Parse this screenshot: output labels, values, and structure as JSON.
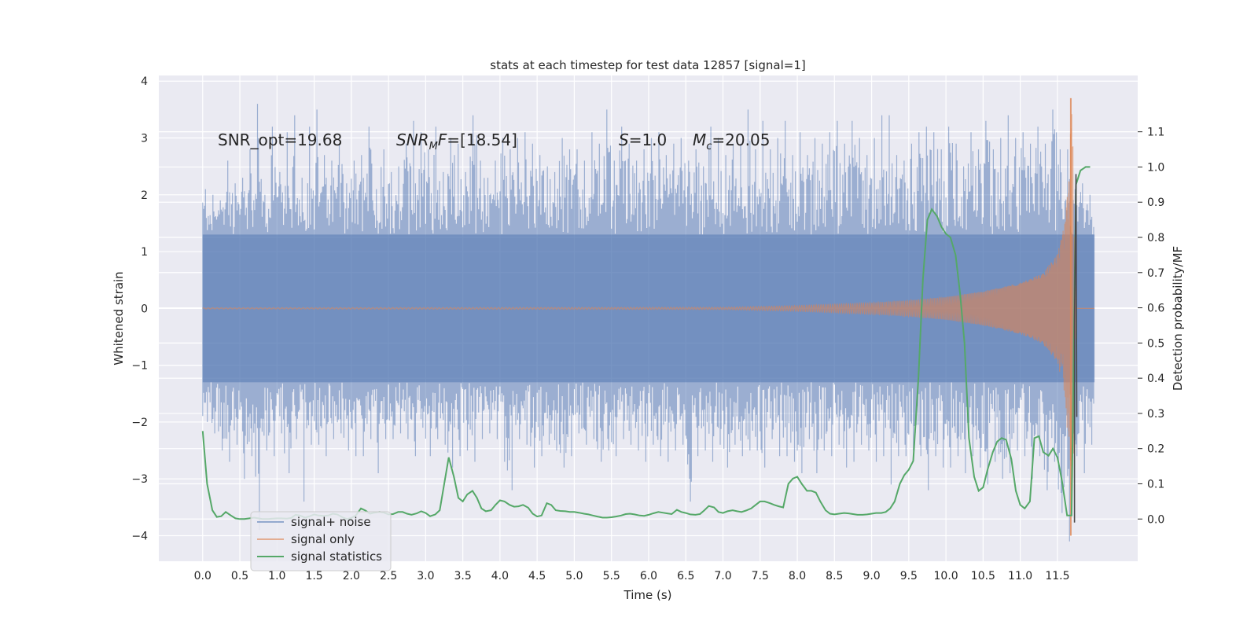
{
  "chart_data": {
    "type": "line",
    "title": "stats at each timestep for test data 12857 [signal=1]",
    "xlabel": "Time (s)",
    "ylabel": "Whitened strain",
    "ylabel_right": "Detection probability/MF",
    "xlim": [
      -0.59,
      12.58
    ],
    "ylim": [
      -4.45,
      4.1
    ],
    "ylim_right": [
      -0.12,
      1.26
    ],
    "x_ticks": [
      "0.0",
      "0.5",
      "1.0",
      "1.5",
      "2.0",
      "2.5",
      "3.0",
      "3.5",
      "4.0",
      "4.5",
      "5.0",
      "5.5",
      "6.0",
      "6.5",
      "7.0",
      "7.5",
      "8.0",
      "8.5",
      "9.0",
      "9.5",
      "10.0",
      "10.5",
      "11.0",
      "11.5"
    ],
    "y_ticks": [
      "4",
      "3",
      "2",
      "1",
      "0",
      "−1",
      "−2",
      "−3",
      "−4"
    ],
    "y_ticks_right": [
      "1.1",
      "1.0",
      "0.9",
      "0.8",
      "0.7",
      "0.6",
      "0.5",
      "0.4",
      "0.3",
      "0.2",
      "0.1",
      "0.0"
    ],
    "grid": true,
    "legend_position": "lower-left",
    "annotations": [
      {
        "text": "SNR_opt=19.68",
        "x": 0.2,
        "y": 2.87
      },
      {
        "text": "SNR_MF=[18.54]",
        "x": 2.6,
        "y": 2.87
      },
      {
        "text": "S=1.0",
        "x": 5.6,
        "y": 2.87
      },
      {
        "text": "M_c=20.05",
        "x": 6.6,
        "y": 2.87
      }
    ],
    "series": [
      {
        "name": "signal+ noise",
        "axis": "left",
        "color": "#4c72b0",
        "opacity": 0.5,
        "x_range": [
          0.0,
          12.0
        ],
        "envelope_upper": [
          2.1,
          2.0,
          1.9,
          2.6,
          2.2,
          2.3,
          2.8,
          3.6,
          2.0,
          3.2,
          2.4,
          3.1,
          3.4,
          2.3,
          3.2,
          3.5,
          2.7,
          2.6,
          2.9,
          2.2,
          2.6,
          2.7,
          3.2,
          2.1,
          2.8,
          2.4,
          2.5,
          2.9,
          3.3,
          3.1,
          2.8,
          3.2,
          2.4,
          3.0,
          2.9,
          2.4,
          3.4,
          2.6,
          2.3,
          2.6,
          3.0,
          2.8,
          3.0,
          3.1,
          2.9,
          2.7,
          2.5,
          2.4,
          3.0,
          2.8,
          2.8,
          2.6,
          3.1,
          2.9,
          3.5,
          2.6,
          3.2,
          2.9,
          2.6,
          2.8,
          3.0,
          3.1,
          2.7,
          2.9,
          3.0,
          2.6,
          2.8,
          2.5,
          3.2,
          3.0,
          2.7,
          2.9,
          2.9,
          3.5,
          2.8,
          3.3,
          2.8,
          3.0,
          3.3,
          2.7,
          3.1,
          2.7,
          3.0,
          2.9,
          3.1,
          3.3,
          2.9,
          3.3,
          3.0,
          2.7,
          3.0,
          3.4,
          3.4,
          2.7,
          2.6,
          2.9,
          3.1,
          3.2,
          3.1,
          2.8,
          3.2,
          2.9,
          2.5,
          3.1,
          2.8,
          3.3,
          2.8,
          3.0,
          3.4,
          3.0,
          3.1,
          2.9,
          3.2,
          2.9,
          3.5,
          2.8,
          2.8,
          2.1,
          2.2,
          2.0
        ],
        "envelope_lower": [
          -2.0,
          -2.2,
          -2.5,
          -2.7,
          -2.4,
          -3.0,
          -2.6,
          -3.9,
          -2.5,
          -2.6,
          -2.2,
          -2.9,
          -2.3,
          -3.4,
          -2.4,
          -2.4,
          -2.6,
          -2.3,
          -2.2,
          -2.5,
          -2.6,
          -2.6,
          -2.3,
          -2.9,
          -2.3,
          -2.3,
          -2.2,
          -2.3,
          -2.6,
          -2.1,
          -2.6,
          -2.3,
          -2.4,
          -2.8,
          -2.6,
          -2.5,
          -2.7,
          -2.3,
          -2.2,
          -2.3,
          -2.7,
          -3.2,
          -2.3,
          -2.4,
          -2.8,
          -2.6,
          -2.4,
          -2.5,
          -2.8,
          -2.6,
          -2.2,
          -2.4,
          -2.3,
          -2.7,
          -2.5,
          -2.6,
          -2.3,
          -2.4,
          -2.5,
          -2.7,
          -2.4,
          -2.6,
          -2.7,
          -2.5,
          -2.4,
          -3.4,
          -2.6,
          -2.5,
          -2.7,
          -2.4,
          -2.8,
          -2.4,
          -2.6,
          -2.5,
          -2.5,
          -2.8,
          -2.3,
          -2.6,
          -2.6,
          -2.7,
          -2.9,
          -2.3,
          -2.9,
          -2.5,
          -2.6,
          -2.4,
          -2.8,
          -2.7,
          -2.4,
          -2.5,
          -2.7,
          -2.6,
          -3.1,
          -2.6,
          -2.6,
          -2.5,
          -2.6,
          -3.2,
          -2.6,
          -2.8,
          -2.8,
          -2.6,
          -2.9,
          -2.6,
          -2.8,
          -3.1,
          -2.7,
          -3.0,
          -2.9,
          -2.5,
          -2.6,
          -3.0,
          -2.6,
          -3.2,
          -2.7,
          -3.6,
          -4.1,
          -2.6,
          -2.9,
          -2.4
        ]
      },
      {
        "name": "signal only",
        "axis": "left",
        "color": "#dd8452",
        "opacity": 0.6,
        "chirp_amplitude": {
          "x": [
            0.0,
            7.0,
            8.0,
            9.0,
            9.5,
            10.0,
            10.5,
            11.0,
            11.3,
            11.5,
            11.6,
            11.65,
            11.7,
            11.75,
            12.0
          ],
          "amp": [
            0.01,
            0.02,
            0.05,
            0.1,
            0.14,
            0.2,
            0.3,
            0.45,
            0.62,
            0.95,
            1.5,
            2.5,
            3.6,
            0.0,
            0.0
          ]
        },
        "spike": {
          "x": 11.68,
          "max": 3.7,
          "min": -4.0
        }
      },
      {
        "name": "signal statistics",
        "axis": "right",
        "color": "#55a868",
        "x": [
          0.0,
          0.06,
          0.13,
          0.19,
          0.25,
          0.31,
          0.38,
          0.44,
          0.5,
          0.56,
          0.63,
          0.69,
          0.75,
          0.81,
          0.88,
          0.94,
          1.0,
          1.06,
          1.13,
          1.19,
          1.25,
          1.31,
          1.38,
          1.44,
          1.5,
          1.56,
          1.63,
          1.69,
          1.75,
          1.81,
          1.88,
          1.94,
          2.0,
          2.06,
          2.13,
          2.19,
          2.25,
          2.31,
          2.38,
          2.44,
          2.5,
          2.56,
          2.63,
          2.69,
          2.75,
          2.81,
          2.88,
          2.94,
          3.0,
          3.06,
          3.13,
          3.19,
          3.25,
          3.31,
          3.38,
          3.44,
          3.5,
          3.56,
          3.63,
          3.69,
          3.75,
          3.81,
          3.88,
          3.94,
          4.0,
          4.06,
          4.13,
          4.19,
          4.25,
          4.31,
          4.38,
          4.44,
          4.5,
          4.56,
          4.63,
          4.69,
          4.75,
          4.81,
          4.88,
          4.94,
          5.0,
          5.06,
          5.13,
          5.19,
          5.25,
          5.31,
          5.38,
          5.44,
          5.5,
          5.56,
          5.63,
          5.69,
          5.75,
          5.81,
          5.88,
          5.94,
          6.0,
          6.06,
          6.13,
          6.19,
          6.25,
          6.31,
          6.38,
          6.44,
          6.5,
          6.56,
          6.63,
          6.69,
          6.75,
          6.81,
          6.88,
          6.94,
          7.0,
          7.06,
          7.13,
          7.19,
          7.25,
          7.31,
          7.38,
          7.44,
          7.5,
          7.56,
          7.63,
          7.69,
          7.75,
          7.81,
          7.88,
          7.94,
          8.0,
          8.06,
          8.13,
          8.19,
          8.25,
          8.31,
          8.38,
          8.44,
          8.5,
          8.56,
          8.63,
          8.69,
          8.75,
          8.81,
          8.88,
          8.94,
          9.0,
          9.06,
          9.13,
          9.19,
          9.25,
          9.31,
          9.38,
          9.44,
          9.5,
          9.56,
          9.63,
          9.69,
          9.75,
          9.81,
          9.88,
          9.94,
          10.0,
          10.06,
          10.13,
          10.19,
          10.25,
          10.31,
          10.38,
          10.44,
          10.5,
          10.56,
          10.63,
          10.69,
          10.75,
          10.81,
          10.88,
          10.94,
          11.0,
          11.06,
          11.13,
          11.19,
          11.25,
          11.31,
          11.38,
          11.44,
          11.5,
          11.56,
          11.63,
          11.69,
          11.75,
          11.81,
          11.88,
          11.94
        ],
        "values": [
          0.25,
          0.1,
          0.025,
          0.006,
          0.008,
          0.02,
          0.01,
          0.002,
          0.0,
          0.0,
          0.002,
          0.004,
          0.002,
          0.0,
          0.0,
          0.001,
          0.002,
          0.002,
          0.001,
          0.003,
          0.012,
          0.01,
          0.004,
          0.008,
          0.013,
          0.01,
          0.009,
          0.01,
          0.015,
          0.013,
          0.005,
          0.0,
          0.003,
          0.01,
          0.03,
          0.024,
          0.015,
          0.018,
          0.02,
          0.018,
          0.013,
          0.014,
          0.02,
          0.02,
          0.015,
          0.012,
          0.016,
          0.022,
          0.017,
          0.008,
          0.013,
          0.025,
          0.1,
          0.175,
          0.12,
          0.06,
          0.05,
          0.07,
          0.08,
          0.06,
          0.03,
          0.022,
          0.025,
          0.04,
          0.053,
          0.05,
          0.04,
          0.035,
          0.036,
          0.04,
          0.032,
          0.015,
          0.007,
          0.01,
          0.045,
          0.04,
          0.025,
          0.023,
          0.022,
          0.02,
          0.02,
          0.018,
          0.015,
          0.013,
          0.01,
          0.007,
          0.004,
          0.004,
          0.005,
          0.007,
          0.01,
          0.014,
          0.015,
          0.013,
          0.01,
          0.009,
          0.012,
          0.016,
          0.02,
          0.018,
          0.016,
          0.014,
          0.026,
          0.02,
          0.017,
          0.013,
          0.012,
          0.014,
          0.025,
          0.037,
          0.033,
          0.02,
          0.017,
          0.022,
          0.025,
          0.022,
          0.02,
          0.024,
          0.03,
          0.04,
          0.05,
          0.05,
          0.045,
          0.04,
          0.036,
          0.033,
          0.1,
          0.115,
          0.12,
          0.1,
          0.08,
          0.08,
          0.075,
          0.05,
          0.025,
          0.015,
          0.013,
          0.015,
          0.017,
          0.016,
          0.014,
          0.012,
          0.012,
          0.013,
          0.015,
          0.017,
          0.017,
          0.02,
          0.03,
          0.05,
          0.1,
          0.125,
          0.14,
          0.165,
          0.4,
          0.68,
          0.85,
          0.88,
          0.86,
          0.83,
          0.81,
          0.8,
          0.75,
          0.64,
          0.5,
          0.23,
          0.12,
          0.08,
          0.09,
          0.14,
          0.19,
          0.22,
          0.23,
          0.225,
          0.17,
          0.08,
          0.04,
          0.03,
          0.05,
          0.23,
          0.235,
          0.19,
          0.18,
          0.2,
          0.175,
          0.11,
          0.01,
          0.01,
          0.95,
          0.99,
          1.0,
          1.0
        ]
      },
      {
        "name": "",
        "axis": "right",
        "color": "#4a4a4a",
        "x": [
          11.73,
          11.73,
          11.75,
          11.76
        ],
        "values": [
          -0.01,
          0.56,
          0.98,
          0.29
        ]
      }
    ]
  }
}
